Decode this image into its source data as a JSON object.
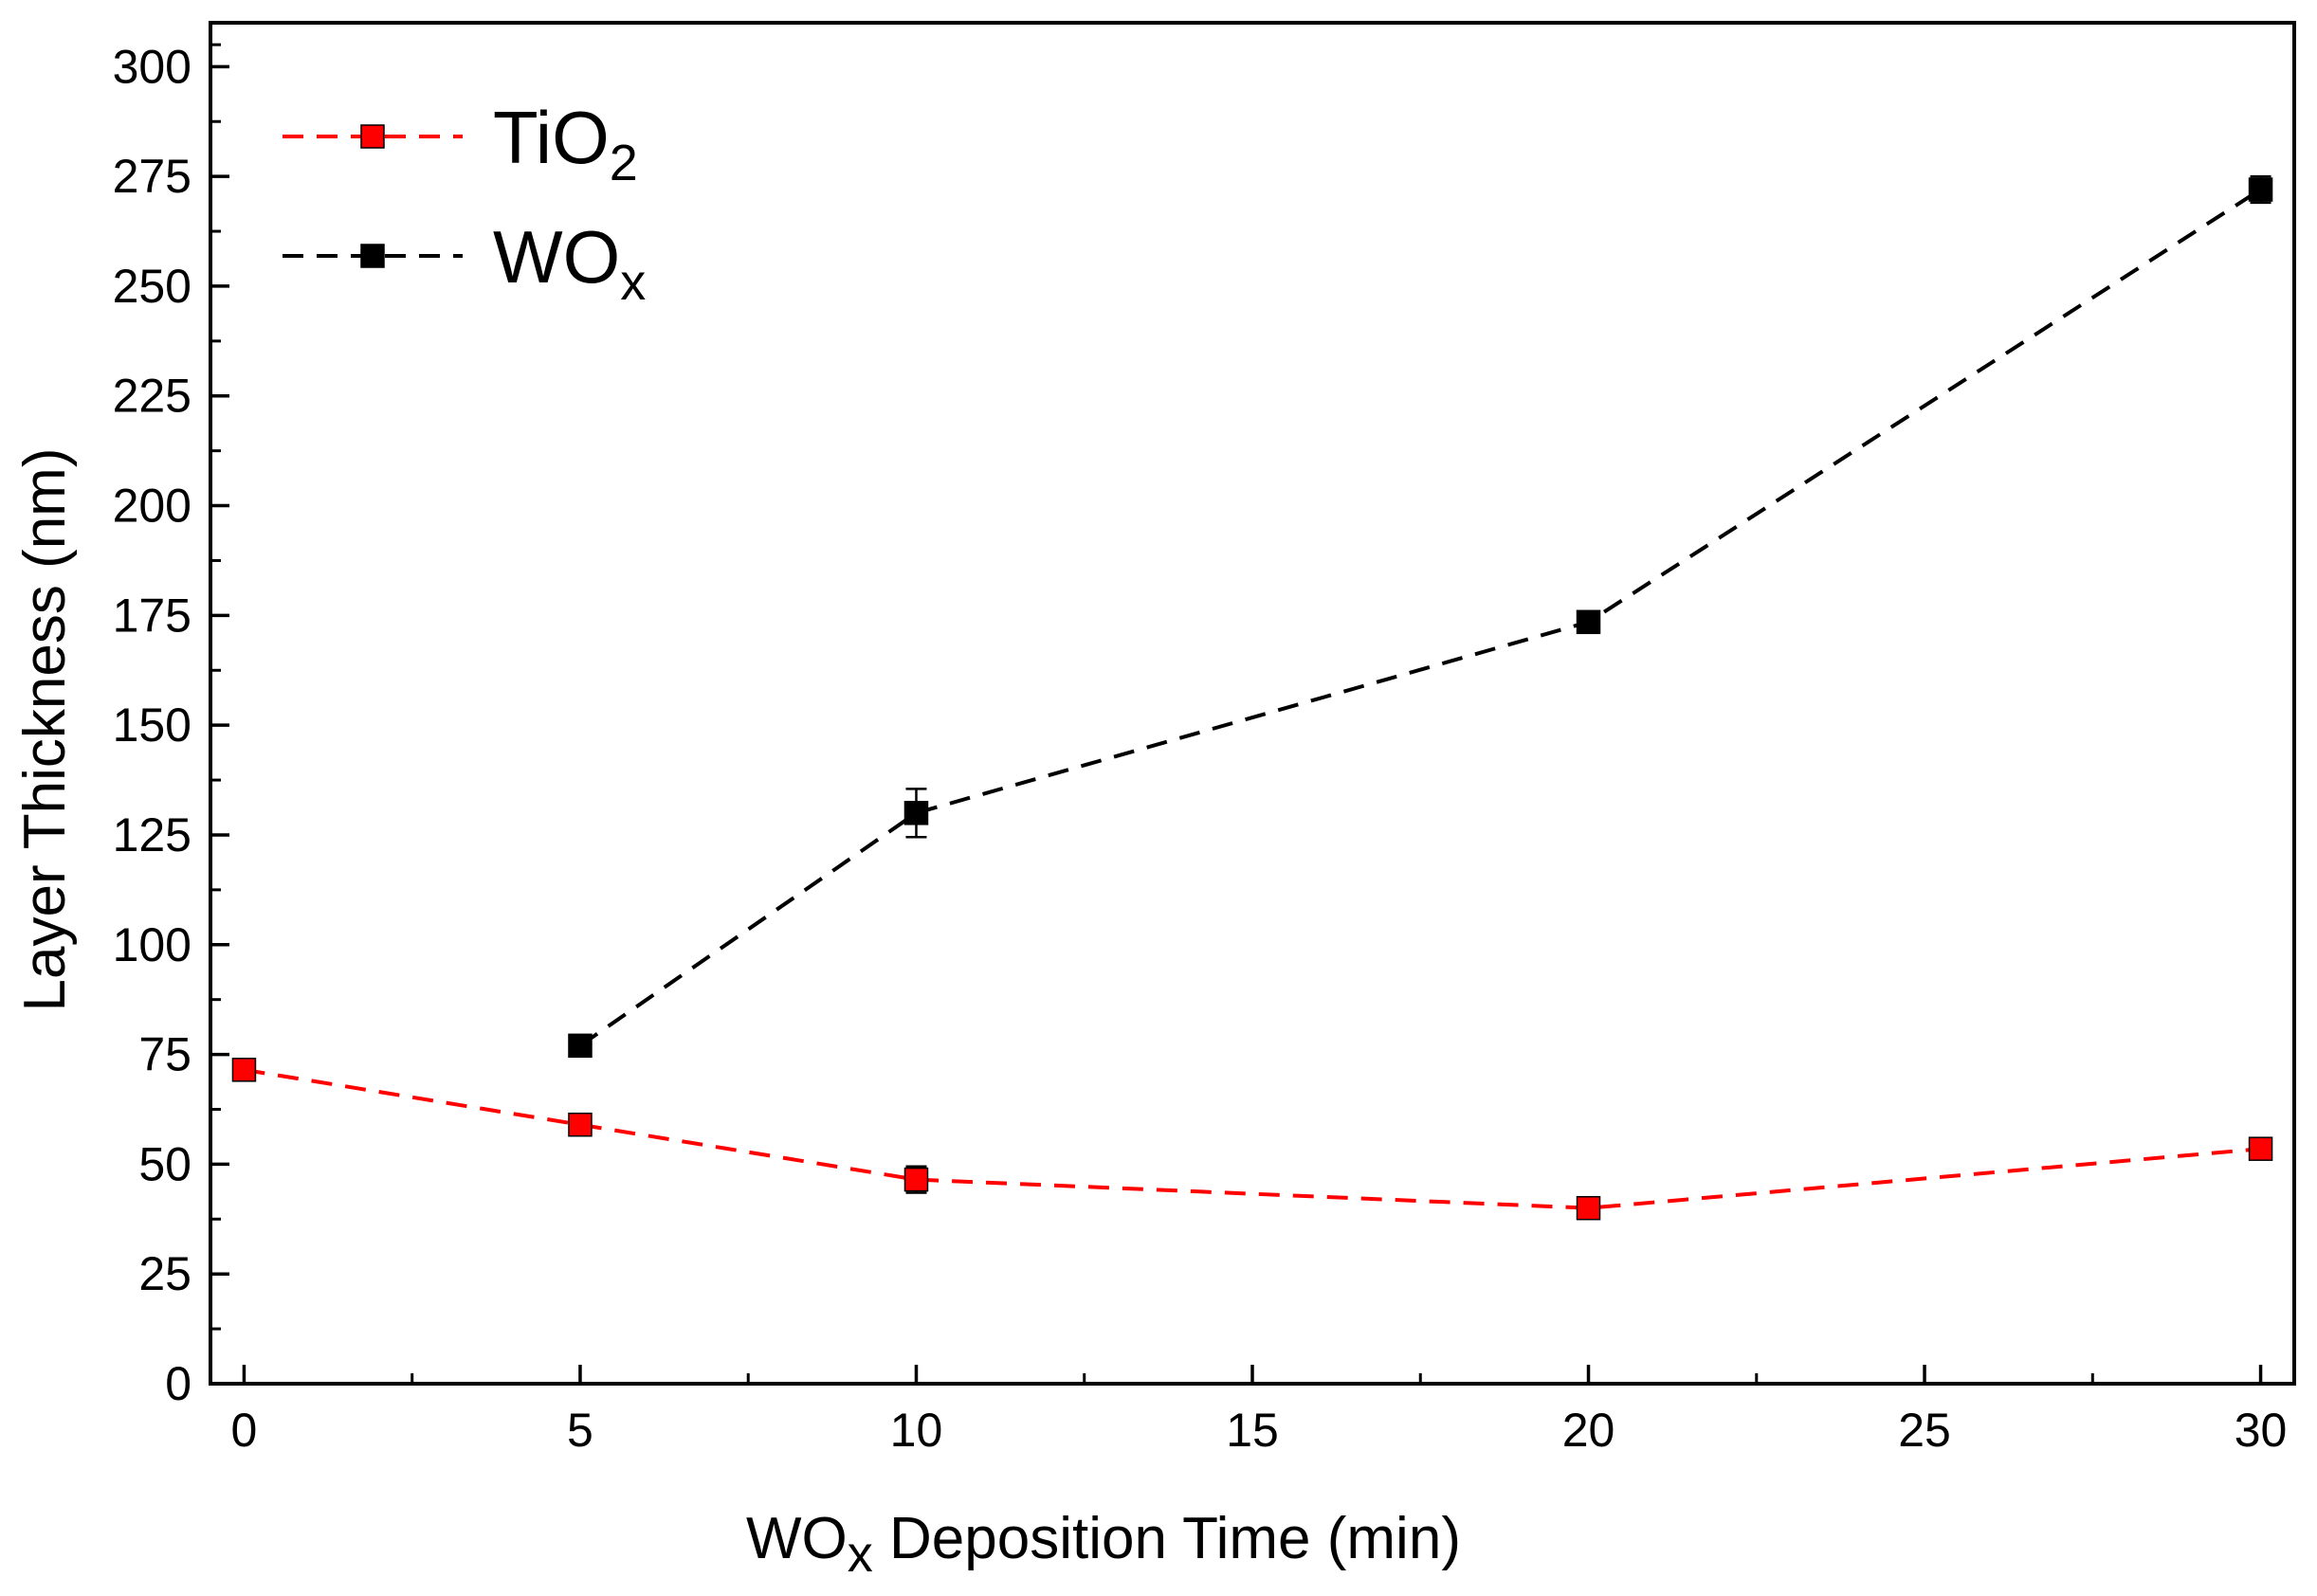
{
  "chart_data": {
    "type": "line",
    "xlabel": {
      "main": "WO",
      "sub": "x",
      "rest": " Deposition Time (min)"
    },
    "ylabel": "Layer Thickness (nm)",
    "xlim": [
      -0.5,
      30.5
    ],
    "ylim": [
      0,
      310
    ],
    "xticks": [
      0,
      5,
      10,
      15,
      20,
      25,
      30
    ],
    "xtick_labels": [
      "0",
      "5",
      "10",
      "15",
      "20",
      "25",
      "30"
    ],
    "yticks": [
      0,
      25,
      50,
      75,
      100,
      125,
      150,
      175,
      200,
      225,
      250,
      275,
      300
    ],
    "ytick_labels": [
      "0",
      "25",
      "50",
      "75",
      "100",
      "125",
      "150",
      "175",
      "200",
      "225",
      "250",
      "275",
      "300"
    ],
    "legend_position": "top-left",
    "series": [
      {
        "name": "TiO2",
        "label_main": "TiO",
        "label_sub": "2",
        "color": "#ff0000",
        "line_style": "dashed",
        "marker": "square",
        "x": [
          0,
          5,
          10,
          20,
          30
        ],
        "y": [
          71.5,
          59,
          46.5,
          40,
          53.5
        ],
        "err": [
          2,
          2,
          3,
          2,
          2
        ]
      },
      {
        "name": "WOx",
        "label_main": "WO",
        "label_sub": "x",
        "color": "#000000",
        "line_style": "dashed",
        "marker": "square",
        "x": [
          5,
          10,
          20,
          30
        ],
        "y": [
          77,
          130,
          173.5,
          272
        ],
        "err": [
          2,
          5.5,
          2,
          3
        ]
      }
    ]
  }
}
